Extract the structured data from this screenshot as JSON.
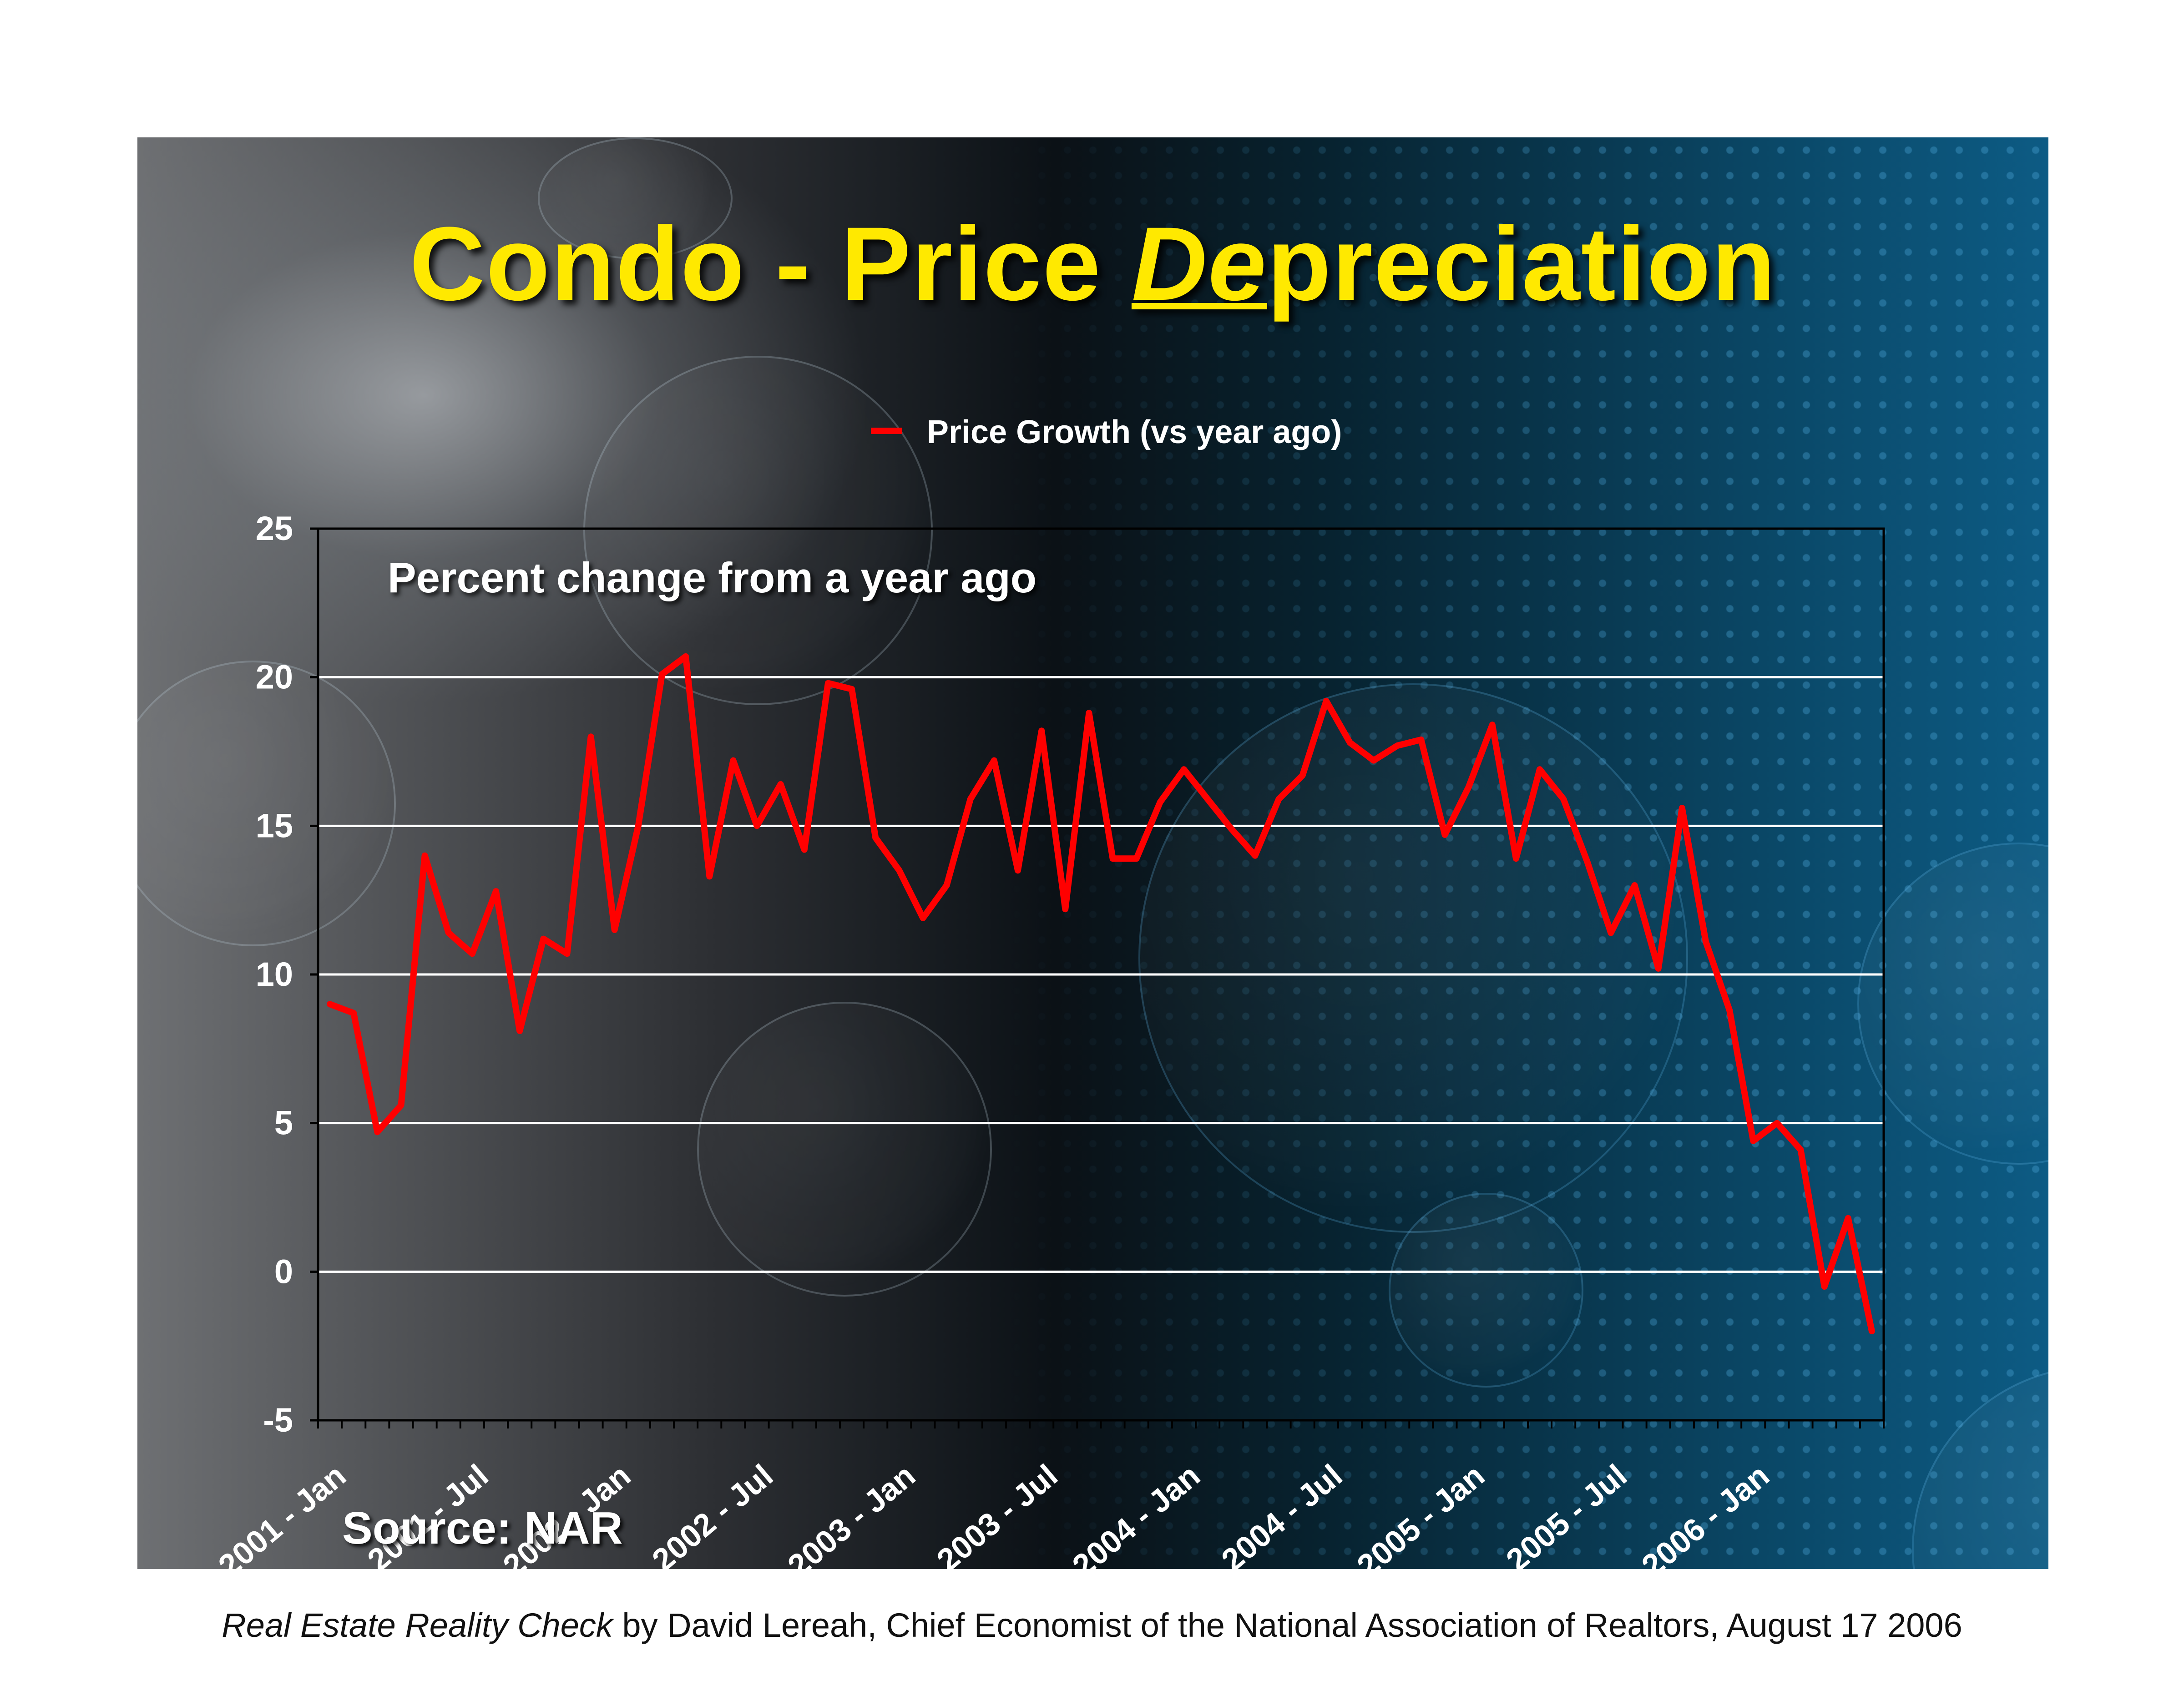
{
  "slide": {
    "title_part1": "Condo - Price ",
    "title_em": "De",
    "title_part2": "preciation",
    "source": "Source: NAR"
  },
  "caption": {
    "italic": "Real Estate Reality Check",
    "rest": " by David Lereah, Chief Economist of the National Association of Realtors, August 17 2006"
  },
  "colors": {
    "title": "#ffe900",
    "series": "#ff0000",
    "gridline": "#ffffff"
  },
  "chart_data": {
    "type": "line",
    "annotation": "Percent change from a year ago",
    "legend_position": "top",
    "ylim": [
      -5,
      25
    ],
    "yticks": [
      -5,
      0,
      5,
      10,
      15,
      20,
      25
    ],
    "grid": "horizontal",
    "xtick_labels": [
      "2001 - Jan",
      "2001 - Jul",
      "2002 - Jan",
      "2002 - Jul",
      "2003 - Jan",
      "2003 - Jul",
      "2004 - Jan",
      "2004 - Jul",
      "2005 - Jan",
      "2005 - Jul",
      "2006 - Jan"
    ],
    "series": [
      {
        "name": "Price Growth (vs year ago)",
        "values": [
          9.0,
          8.7,
          4.7,
          5.6,
          14.0,
          11.4,
          10.7,
          12.8,
          8.1,
          11.2,
          10.7,
          18.0,
          11.5,
          15.0,
          20.1,
          20.7,
          13.3,
          17.2,
          15.0,
          16.4,
          14.2,
          19.8,
          19.6,
          14.6,
          13.5,
          11.9,
          13.0,
          15.9,
          17.2,
          13.5,
          18.2,
          12.2,
          18.8,
          13.9,
          13.9,
          15.8,
          16.9,
          15.9,
          14.9,
          14.0,
          15.9,
          16.7,
          19.2,
          17.8,
          17.2,
          17.7,
          17.9,
          14.7,
          16.3,
          18.4,
          13.9,
          16.9,
          15.9,
          13.8,
          11.4,
          13.0,
          10.2,
          15.6,
          11.1,
          8.8,
          4.4,
          5.0,
          4.1,
          -0.5,
          1.8,
          -2.0
        ]
      }
    ]
  }
}
